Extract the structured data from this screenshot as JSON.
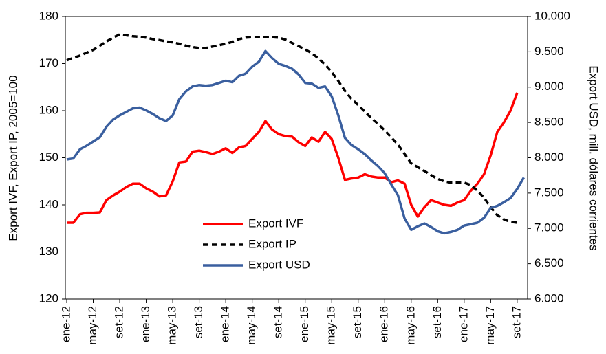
{
  "chart_data": {
    "type": "line",
    "y_label": "Export IVF, Export IP, 2005=100",
    "y2_label": "Export USD, mill. dólares corrientes",
    "categories": [
      "ene-12",
      null,
      null,
      null,
      "may-12",
      null,
      null,
      null,
      "set-12",
      null,
      null,
      null,
      "ene-13",
      null,
      null,
      null,
      "may-13",
      null,
      null,
      null,
      "set-13",
      null,
      null,
      null,
      "ene-14",
      null,
      null,
      null,
      "may-14",
      null,
      null,
      null,
      "set-14",
      null,
      null,
      null,
      "ene-15",
      null,
      null,
      null,
      "may-15",
      null,
      null,
      null,
      "set-15",
      null,
      null,
      null,
      "ene-16",
      null,
      null,
      null,
      "may-16",
      null,
      null,
      null,
      "set-16",
      null,
      null,
      null,
      "ene-17",
      null,
      null,
      null,
      "may-17",
      null,
      null,
      null,
      "set-17",
      null
    ],
    "series": [
      {
        "name": "Export IVF",
        "color": "#ff0000",
        "style": "solid",
        "values": [
          136.2,
          136.2,
          138.0,
          138.3,
          138.3,
          138.4,
          141.0,
          142.0,
          142.8,
          143.8,
          144.5,
          144.5,
          143.5,
          142.8,
          141.8,
          142.0,
          145.0,
          149.0,
          149.2,
          151.3,
          151.5,
          151.2,
          150.8,
          151.3,
          152.0,
          151.0,
          152.2,
          152.5,
          154.0,
          155.5,
          157.8,
          156.0,
          155.0,
          154.6,
          154.5,
          153.3,
          152.5,
          154.3,
          153.4,
          155.5,
          154.0,
          150.0,
          145.3,
          145.6,
          145.8,
          146.5,
          146.0,
          145.8,
          145.8,
          144.8,
          145.2,
          144.5,
          140.0,
          137.5,
          139.5,
          141.0,
          140.5,
          140.0,
          139.8,
          140.5,
          141.0,
          143.0,
          144.5,
          146.5,
          150.5,
          155.5,
          157.5,
          160.0,
          163.8,
          null
        ]
      },
      {
        "name": "Export IP",
        "color": "#000000",
        "style": "dashed",
        "values": [
          170.7,
          171.2,
          171.7,
          172.3,
          172.9,
          173.8,
          174.7,
          175.5,
          176.2,
          176.0,
          175.8,
          175.7,
          175.5,
          175.2,
          175.0,
          174.7,
          174.5,
          174.2,
          173.8,
          173.5,
          173.3,
          173.3,
          173.6,
          173.9,
          174.2,
          174.6,
          175.2,
          175.5,
          175.6,
          175.6,
          175.6,
          175.6,
          175.5,
          175.1,
          174.4,
          173.7,
          173.0,
          172.2,
          171.1,
          169.8,
          168.2,
          166.3,
          164.2,
          162.5,
          161.2,
          159.8,
          158.4,
          157.2,
          155.8,
          154.3,
          152.8,
          150.8,
          148.8,
          148.0,
          147.2,
          146.3,
          145.5,
          145.0,
          144.7,
          144.7,
          144.7,
          144.2,
          143.0,
          141.5,
          139.5,
          137.8,
          136.9,
          136.4,
          136.2,
          null
        ]
      },
      {
        "name": "Export USD",
        "color": "#3a5f9f",
        "style": "solid",
        "axis": "y2",
        "values": [
          7976,
          7990,
          8120,
          8170,
          8230,
          8290,
          8440,
          8540,
          8600,
          8650,
          8700,
          8710,
          8670,
          8620,
          8560,
          8520,
          8600,
          8830,
          8940,
          9010,
          9030,
          9020,
          9030,
          9060,
          9090,
          9070,
          9160,
          9190,
          9290,
          9360,
          9510,
          9410,
          9330,
          9300,
          9260,
          9180,
          9060,
          9050,
          8990,
          9010,
          8870,
          8600,
          8280,
          8180,
          8120,
          8050,
          7960,
          7880,
          7780,
          7620,
          7470,
          7140,
          6980,
          7030,
          7070,
          7020,
          6960,
          6930,
          6950,
          6980,
          7040,
          7060,
          7080,
          7150,
          7290,
          7320,
          7370,
          7430,
          7560,
          7720
        ]
      }
    ],
    "ylim": [
      120,
      180
    ],
    "yticks": [
      120,
      130,
      140,
      150,
      160,
      170,
      180
    ],
    "y2lim": [
      6000,
      10000
    ],
    "y2ticks": [
      {
        "value": 6000,
        "label": "6.000"
      },
      {
        "value": 6500,
        "label": "6.500"
      },
      {
        "value": 7000,
        "label": "7.000"
      },
      {
        "value": 7500,
        "label": "7.500"
      },
      {
        "value": 8000,
        "label": "8.000"
      },
      {
        "value": 8500,
        "label": "8.500"
      },
      {
        "value": 9000,
        "label": "9.000"
      },
      {
        "value": 9500,
        "label": "9.500"
      },
      {
        "value": 10000,
        "label": "10.000"
      }
    ],
    "grid": false,
    "legend": "bottom-center"
  }
}
